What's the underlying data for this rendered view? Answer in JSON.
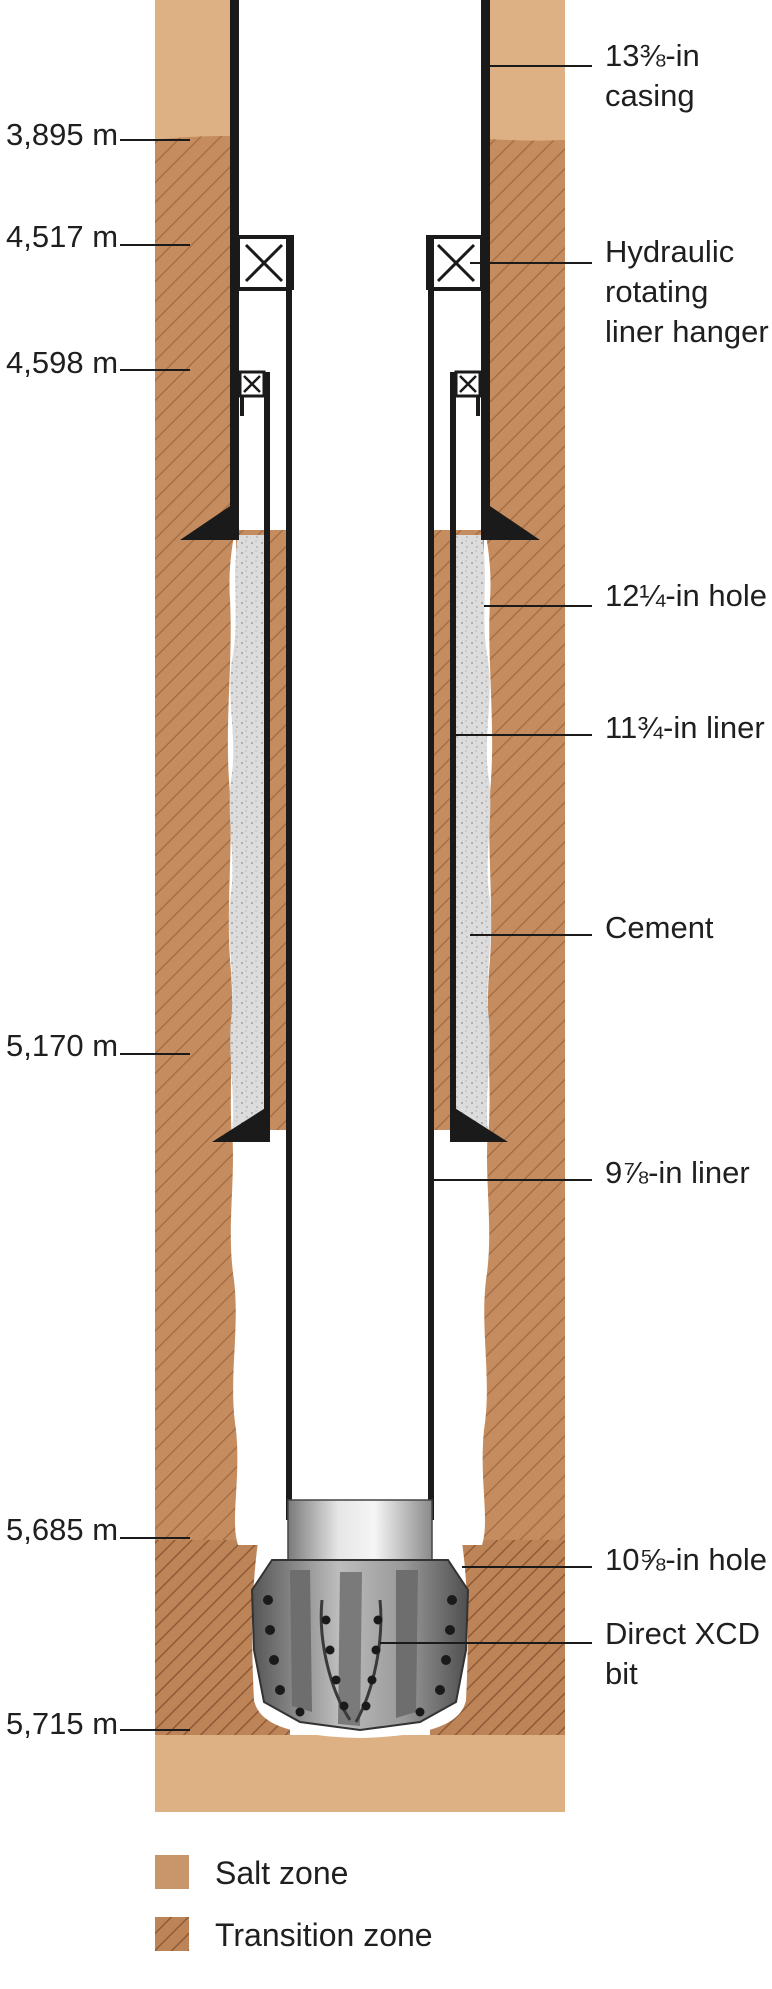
{
  "depth_markers": [
    {
      "text": "3,895 m"
    },
    {
      "text": "4,517 m"
    },
    {
      "text": "4,598 m"
    },
    {
      "text": "5,170 m"
    },
    {
      "text": "5,685 m"
    },
    {
      "text": "5,715 m"
    }
  ],
  "callouts": [
    {
      "lines": [
        "13⅜-in",
        "casing"
      ]
    },
    {
      "lines": [
        "Hydraulic",
        "rotating",
        "liner hanger"
      ]
    },
    {
      "lines": [
        "12¼-in hole"
      ]
    },
    {
      "lines": [
        "11¾-in liner"
      ]
    },
    {
      "lines": [
        "Cement"
      ]
    },
    {
      "lines": [
        "9⅞-in liner"
      ]
    },
    {
      "lines": [
        "10⅝-in hole"
      ]
    },
    {
      "lines": [
        "Direct XCD",
        "bit"
      ]
    }
  ],
  "legend": {
    "items": [
      {
        "label": "Salt zone",
        "swatch": "salt",
        "color": "#c9956a"
      },
      {
        "label": "Transition zone",
        "swatch": "transition",
        "color": "#bd8458"
      }
    ]
  },
  "colors": {
    "salt_light": "#ddb183",
    "salt": "#c9956a",
    "transition": "#bd8458",
    "hatch": "#9c6640",
    "cement": "#d9d9d9",
    "steel": "#1a1a1a"
  }
}
